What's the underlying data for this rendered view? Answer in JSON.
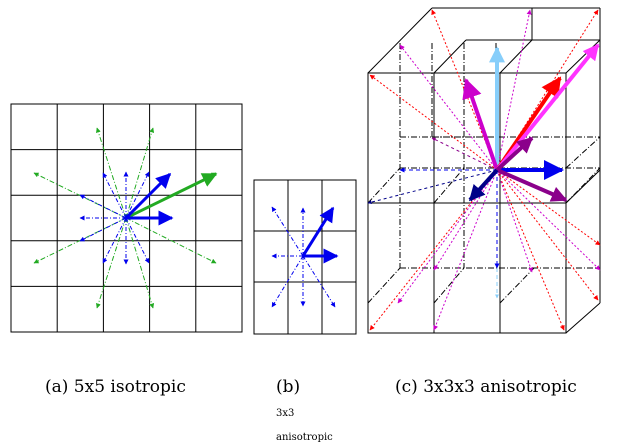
{
  "captions": {
    "a": "(a) 5x5 isotropic",
    "b_label": "(b)",
    "b_line1": "3x3",
    "b_line2": "anisotropic",
    "c": "(c) 3x3x3 anisotropic"
  },
  "colors": {
    "grid": "#000000",
    "green": "#22aa22",
    "blue": "#0000ee",
    "red": "#ff0000",
    "magenta": "#cc00cc",
    "bright_magenta": "#ff33ff",
    "purple": "#8b008b",
    "light_blue": "#87cefa",
    "dark_blue": "#000088"
  }
}
